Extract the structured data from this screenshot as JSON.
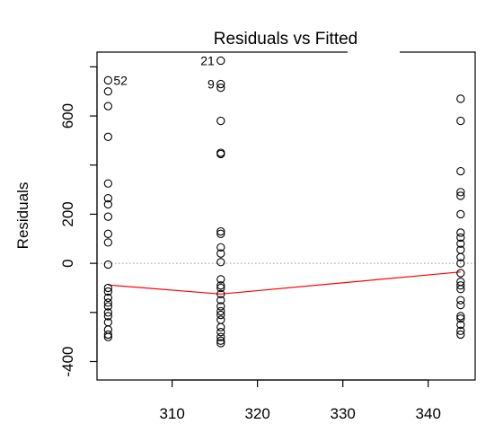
{
  "chart_data": {
    "type": "scatter",
    "title": "Residuals vs Fitted",
    "xlabel": "",
    "ylabel": "Residuals",
    "xlim": [
      301.2,
      345.5
    ],
    "ylim": [
      -475,
      860
    ],
    "x_ticks": [
      310,
      320,
      330,
      340
    ],
    "y_ticks": [
      -400,
      0,
      200,
      600
    ],
    "y_tick_marks": [
      -400,
      -200,
      0,
      200,
      400,
      600,
      800
    ],
    "reference_line": {
      "y": 0,
      "style": "dotted",
      "color": "#999999"
    },
    "smooth_line": {
      "color": "#ff0000",
      "points": [
        [
          302.5,
          -88
        ],
        [
          315.7,
          -125
        ],
        [
          343.8,
          -35
        ]
      ]
    },
    "points_color": "#000000",
    "groups": [
      {
        "x": 302.5,
        "y": [
          745,
          700,
          640,
          515,
          325,
          265,
          240,
          190,
          120,
          85,
          -5,
          -100,
          -115,
          -140,
          -160,
          -175,
          -200,
          -215,
          -240,
          -270,
          -290,
          -300
        ]
      },
      {
        "x": 315.7,
        "y": [
          825,
          730,
          715,
          580,
          450,
          445,
          130,
          120,
          65,
          40,
          5,
          -65,
          -90,
          -100,
          -125,
          -150,
          -175,
          -195,
          -210,
          -230,
          -260,
          -280,
          -300,
          -315,
          -325
        ]
      },
      {
        "x": 343.8,
        "y": [
          670,
          580,
          375,
          290,
          275,
          200,
          125,
          105,
          80,
          55,
          25,
          0,
          -40,
          -75,
          -90,
          -105,
          -150,
          -170,
          -215,
          -225,
          -250,
          -275,
          -290
        ]
      }
    ],
    "annotations": [
      {
        "text": "52",
        "x": 302.5,
        "y": 745,
        "side": "right"
      },
      {
        "text": "21",
        "x": 315.7,
        "y": 825,
        "side": "left"
      },
      {
        "text": "9",
        "x": 315.7,
        "y": 730,
        "side": "left"
      }
    ]
  }
}
